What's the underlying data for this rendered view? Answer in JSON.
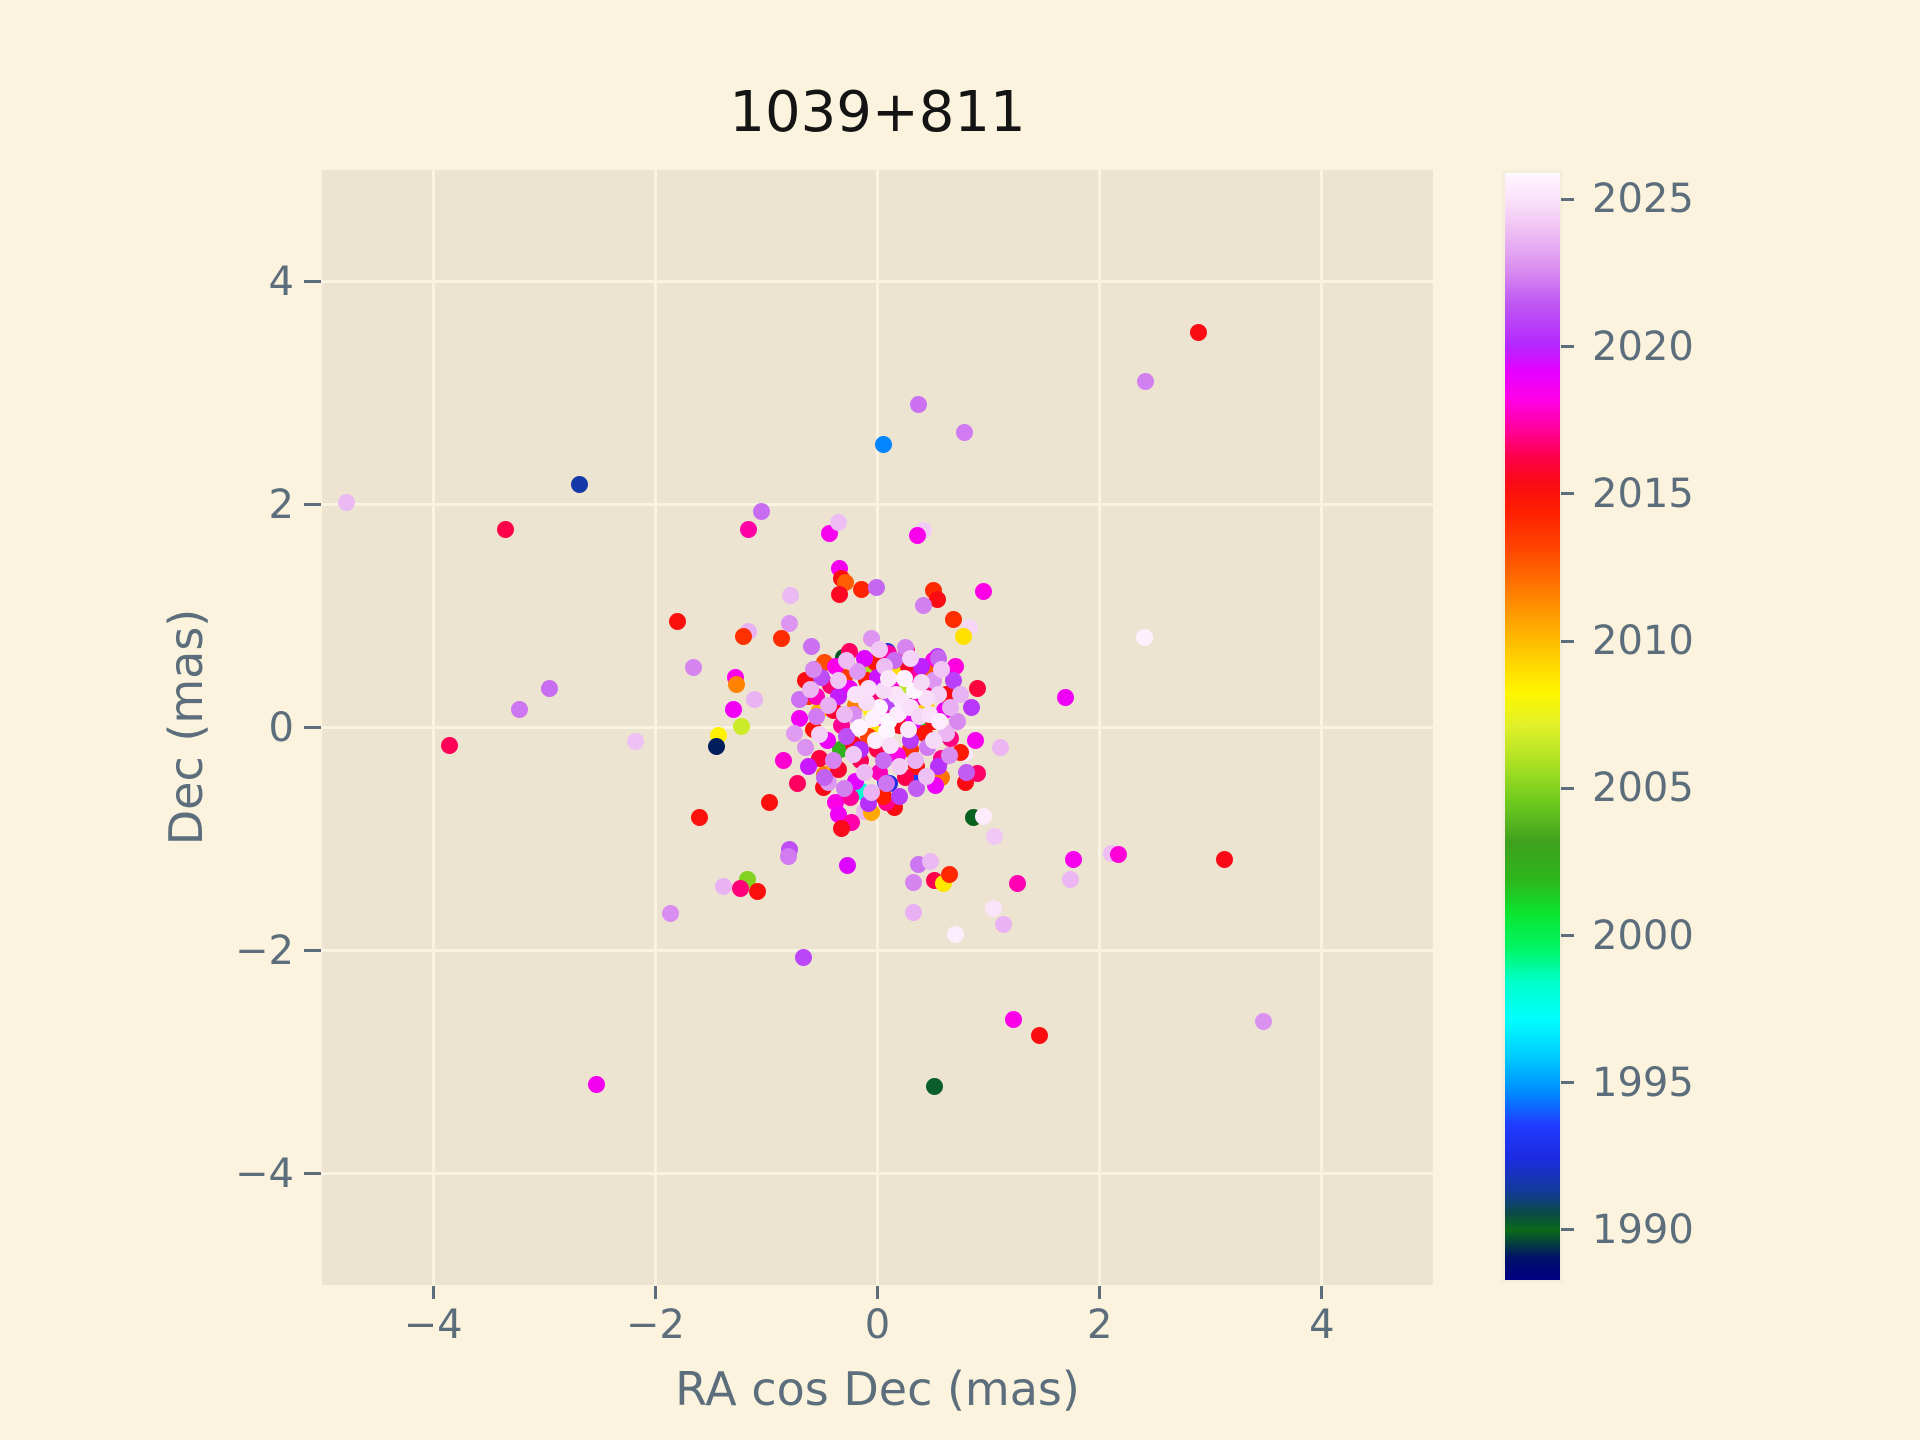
{
  "title": "1039+811",
  "colors": {
    "page_bg": "#fbf3dd",
    "plot_bg": "#ece4d0",
    "grid": "#f9f3e1",
    "tick_text": "#5c6e7c",
    "title_text": "#141414"
  },
  "chart_data": {
    "type": "scatter",
    "title": "1039+811",
    "xlabel": "RA cos Dec (mas)",
    "ylabel": "Dec (mas)",
    "xlim": [
      -5,
      5
    ],
    "ylim": [
      -5,
      5
    ],
    "grid": true,
    "marker_diameter_px": 17,
    "ticks_x": [
      {
        "v": -4,
        "label": "−4"
      },
      {
        "v": -2,
        "label": "−2"
      },
      {
        "v": 0,
        "label": "0"
      },
      {
        "v": 2,
        "label": "2"
      },
      {
        "v": 4,
        "label": "4"
      }
    ],
    "ticks_y": [
      {
        "v": -4,
        "label": "−4"
      },
      {
        "v": -2,
        "label": "−2"
      },
      {
        "v": 0,
        "label": "0"
      },
      {
        "v": 2,
        "label": "2"
      },
      {
        "v": 4,
        "label": "4"
      }
    ],
    "colorbar": {
      "colormap": "gist_ncar",
      "min": 1988.3,
      "max": 2025.9,
      "ticks": [
        {
          "v": 1990,
          "label": "1990"
        },
        {
          "v": 1995,
          "label": "1995"
        },
        {
          "v": 2000,
          "label": "2000"
        },
        {
          "v": 2005,
          "label": "2005"
        },
        {
          "v": 2010,
          "label": "2010"
        },
        {
          "v": 2015,
          "label": "2015"
        },
        {
          "v": 2020,
          "label": "2020"
        },
        {
          "v": 2025,
          "label": "2025"
        }
      ],
      "stops": [
        [
          0.0,
          "#000080"
        ],
        [
          0.02,
          "#00106a"
        ],
        [
          0.045,
          "#0a6a18"
        ],
        [
          0.06,
          "#0a4a46"
        ],
        [
          0.08,
          "#123a9a"
        ],
        [
          0.11,
          "#1c2ce0"
        ],
        [
          0.14,
          "#1f3cff"
        ],
        [
          0.17,
          "#008cff"
        ],
        [
          0.2,
          "#00c8ff"
        ],
        [
          0.235,
          "#00ffff"
        ],
        [
          0.27,
          "#00ffc8"
        ],
        [
          0.3,
          "#00f564"
        ],
        [
          0.33,
          "#0ae630"
        ],
        [
          0.36,
          "#2cb81c"
        ],
        [
          0.395,
          "#3fa01e"
        ],
        [
          0.43,
          "#6cc81e"
        ],
        [
          0.465,
          "#a8e022"
        ],
        [
          0.5,
          "#e0f02a"
        ],
        [
          0.53,
          "#fff600"
        ],
        [
          0.56,
          "#ffd200"
        ],
        [
          0.59,
          "#ffaa00"
        ],
        [
          0.625,
          "#ff7800"
        ],
        [
          0.66,
          "#ff4600"
        ],
        [
          0.695,
          "#ff1e00"
        ],
        [
          0.72,
          "#fa0a14"
        ],
        [
          0.745,
          "#ff0050"
        ],
        [
          0.77,
          "#ff00a0"
        ],
        [
          0.795,
          "#ff00e6"
        ],
        [
          0.82,
          "#e600ff"
        ],
        [
          0.845,
          "#b428ff"
        ],
        [
          0.885,
          "#c05cf2"
        ],
        [
          0.91,
          "#d88af0"
        ],
        [
          0.94,
          "#eab4f2"
        ],
        [
          0.97,
          "#f8dcf8"
        ],
        [
          1.0,
          "#fff8ff"
        ]
      ]
    },
    "points": [
      [
        2.89,
        3.54,
        2015.3
      ],
      [
        2.41,
        3.1,
        2022.3
      ],
      [
        0.37,
        2.9,
        2022.0
      ],
      [
        0.78,
        2.65,
        2022.2
      ],
      [
        0.05,
        2.54,
        1994.6
      ],
      [
        0.41,
        1.77,
        2024.3
      ],
      [
        0.36,
        1.72,
        2018.4
      ],
      [
        -4.78,
        2.02,
        2023.8
      ],
      [
        -2.68,
        2.18,
        1991.5
      ],
      [
        -3.35,
        1.78,
        2016.2
      ],
      [
        -1.8,
        0.95,
        2015.1
      ],
      [
        -1.66,
        0.54,
        2022.4
      ],
      [
        -2.95,
        0.35,
        2021.9
      ],
      [
        -3.22,
        0.16,
        2022.1
      ],
      [
        -3.85,
        -0.16,
        2016.4
      ],
      [
        -2.18,
        -0.13,
        2024.0
      ],
      [
        -1.43,
        -0.07,
        2008.4
      ],
      [
        -1.45,
        -0.17,
        1989.2
      ],
      [
        -1.6,
        -0.81,
        2015.0
      ],
      [
        -1.39,
        -1.43,
        2023.6
      ],
      [
        -1.86,
        -1.67,
        2022.6
      ],
      [
        -2.53,
        -3.2,
        2018.6
      ],
      [
        -0.67,
        -2.06,
        2020.9
      ],
      [
        0.51,
        -3.22,
        1990.2
      ],
      [
        1.22,
        -2.62,
        2018.3
      ],
      [
        1.46,
        -2.76,
        2015.2
      ],
      [
        3.47,
        -2.64,
        2022.7
      ],
      [
        3.12,
        -1.18,
        2015.4
      ],
      [
        2.11,
        -1.13,
        2023.9
      ],
      [
        2.17,
        -1.14,
        2018.0
      ],
      [
        1.76,
        -1.18,
        2018.5
      ],
      [
        1.74,
        -1.36,
        2023.7
      ],
      [
        1.26,
        -1.4,
        2017.5
      ],
      [
        0.37,
        -1.23,
        2022.1
      ],
      [
        0.48,
        -1.2,
        2023.8
      ],
      [
        0.32,
        -1.39,
        2022.4
      ],
      [
        0.51,
        -1.37,
        2016.3
      ],
      [
        0.59,
        -1.4,
        2008.7
      ],
      [
        0.65,
        -1.32,
        2014.1
      ],
      [
        0.32,
        -1.66,
        2023.5
      ],
      [
        1.04,
        -1.62,
        2025.1
      ],
      [
        1.13,
        -1.77,
        2023.6
      ],
      [
        0.7,
        -1.86,
        2025.5
      ],
      [
        0.86,
        -0.81,
        1989.9
      ],
      [
        0.95,
        -0.8,
        2025.4
      ],
      [
        1.05,
        -0.98,
        2024.2
      ],
      [
        1.69,
        0.27,
        2018.8
      ],
      [
        2.4,
        0.81,
        2025.6
      ],
      [
        1.11,
        -0.18,
        2023.7
      ],
      [
        0.78,
        -0.23,
        2025.2
      ],
      [
        0.79,
        -0.49,
        2015.3
      ],
      [
        0.9,
        -0.41,
        2016.6
      ],
      [
        0.95,
        1.22,
        2018.2
      ],
      [
        0.5,
        1.23,
        2014.0
      ],
      [
        0.54,
        1.15,
        2015.3
      ],
      [
        0.41,
        1.09,
        2022.3
      ],
      [
        0.68,
        0.97,
        2013.9
      ],
      [
        0.83,
        0.9,
        2024.6
      ],
      [
        0.77,
        0.82,
        2008.9
      ],
      [
        0.26,
        0.69,
        2017.1
      ],
      [
        0.54,
        0.64,
        2020.9
      ],
      [
        0.5,
        0.6,
        2018.4
      ],
      [
        -1.04,
        1.94,
        2021.9
      ],
      [
        -1.16,
        1.78,
        2017.3
      ],
      [
        -0.43,
        1.74,
        2018.5
      ],
      [
        -0.35,
        1.84,
        2023.9
      ],
      [
        -0.34,
        1.43,
        2018.6
      ],
      [
        -0.32,
        1.34,
        2015.2
      ],
      [
        -0.29,
        1.3,
        2012.5
      ],
      [
        -0.14,
        1.24,
        2014.2
      ],
      [
        -0.01,
        1.26,
        2021.8
      ],
      [
        -0.34,
        1.19,
        2015.6
      ],
      [
        -0.78,
        1.18,
        2023.8
      ],
      [
        -1.16,
        0.86,
        2023.6
      ],
      [
        -1.21,
        0.82,
        2013.8
      ],
      [
        -0.86,
        0.8,
        2014.0
      ],
      [
        -0.79,
        0.93,
        2022.8
      ],
      [
        -1.28,
        0.45,
        2018.4
      ],
      [
        -1.27,
        0.39,
        2011.5
      ],
      [
        -1.11,
        0.25,
        2023.6
      ],
      [
        -1.3,
        0.16,
        2018.7
      ],
      [
        -1.22,
        0.01,
        2006.6
      ],
      [
        -0.97,
        -0.67,
        2015.1
      ],
      [
        -0.72,
        -0.5,
        2016.5
      ],
      [
        -0.49,
        -0.54,
        2015.4
      ],
      [
        -0.44,
        -0.49,
        2022.9
      ],
      [
        -0.48,
        -0.42,
        2011.6
      ],
      [
        -0.38,
        -0.67,
        2018.2
      ],
      [
        -0.35,
        -0.78,
        2018.8
      ],
      [
        -0.14,
        -0.57,
        1998.3
      ],
      [
        -0.24,
        -0.63,
        2017.2
      ],
      [
        -0.23,
        -0.85,
        2017.4
      ],
      [
        -0.32,
        -0.91,
        2015.5
      ],
      [
        0.07,
        -0.49,
        1992.8
      ],
      [
        -0.12,
        -0.75,
        2023.7
      ],
      [
        -0.05,
        -0.76,
        2010.5
      ],
      [
        0.15,
        -0.72,
        2015.3
      ],
      [
        0.08,
        -0.67,
        2017.0
      ],
      [
        -0.79,
        -1.09,
        2021.2
      ],
      [
        -0.8,
        -1.16,
        2022.2
      ],
      [
        -0.27,
        -1.24,
        2019.3
      ],
      [
        -1.17,
        -1.36,
        2005.0
      ],
      [
        -1.23,
        -1.44,
        2016.8
      ],
      [
        -1.08,
        -1.47,
        2015.1
      ],
      [
        -0.31,
        0.63,
        1989.8
      ],
      [
        0.09,
        0.68,
        1992.3
      ],
      [
        -0.56,
        0.52,
        1989.1
      ],
      [
        -0.59,
        0.73,
        2022.0
      ],
      [
        0.28,
        0.28,
        1989.4
      ],
      [
        0.39,
        -0.43,
        1993.4
      ],
      [
        0.11,
        -0.5,
        1992.6
      ],
      [
        -0.02,
        0.38,
        1995.6
      ],
      [
        0.36,
        0.41,
        1997.0
      ],
      [
        0.41,
        -0.02,
        2001.0
      ],
      [
        -0.33,
        -0.2,
        2002.3
      ],
      [
        -0.12,
        0.28,
        2004.6
      ],
      [
        -0.1,
        0.52,
        2005.8
      ],
      [
        0.25,
        0.32,
        2006.2
      ],
      [
        0.02,
        0.02,
        2008.8
      ],
      [
        -0.05,
        0.15,
        2008.4
      ],
      [
        0.15,
        0.5,
        2009.0
      ],
      [
        0.43,
        0.2,
        2009.6
      ],
      [
        -0.52,
        0.15,
        2010.1
      ],
      [
        -0.39,
        -0.33,
        2010.4
      ],
      [
        -0.2,
        0.2,
        2011.6
      ],
      [
        0.58,
        -0.45,
        2011.9
      ],
      [
        0.08,
        0.3,
        2012.1
      ],
      [
        0.45,
        0.48,
        2012.6
      ],
      [
        -0.48,
        0.58,
        2012.9
      ],
      [
        -0.08,
        -0.08,
        2013.2
      ],
      [
        -0.3,
        0.45,
        2013.5
      ],
      [
        0.3,
        -0.2,
        2013.7
      ],
      [
        -0.62,
        0.28,
        2013.9
      ],
      [
        0.15,
        0.15,
        2015.2
      ],
      [
        -0.22,
        -0.15,
        2015.6
      ],
      [
        0.42,
        -0.05,
        2014.8
      ],
      [
        -0.4,
        0.15,
        2015.9
      ],
      [
        0.05,
        -0.62,
        2014.5
      ],
      [
        0.62,
        0.3,
        2015.4
      ],
      [
        -0.58,
        -0.02,
        2014.9
      ],
      [
        0.28,
        0.55,
        2015.7
      ],
      [
        -0.1,
        0.42,
        2014.4
      ],
      [
        0.5,
        0.05,
        2015.1
      ],
      [
        -0.35,
        -0.38,
        2015.8
      ],
      [
        0.75,
        -0.22,
        2014.6
      ],
      [
        -0.65,
        0.42,
        2015.3
      ],
      [
        0.2,
        0.02,
        2015.5
      ],
      [
        -0.02,
        0.58,
        2014.7
      ],
      [
        0.35,
        -0.35,
        2015.0
      ],
      [
        -0.06,
        0.25,
        2016.8
      ],
      [
        0.25,
        -0.45,
        2016.3
      ],
      [
        -0.32,
        0.02,
        2017.1
      ],
      [
        0.48,
        0.32,
        2016.6
      ],
      [
        -0.52,
        -0.28,
        2016.1
      ],
      [
        0.1,
        0.66,
        2017.3
      ],
      [
        0.66,
        -0.1,
        2016.9
      ],
      [
        -0.15,
        -0.3,
        2016.4
      ],
      [
        0.35,
        0.45,
        2017.2
      ],
      [
        -0.42,
        0.38,
        2016.7
      ],
      [
        0.0,
        -0.2,
        2016.2
      ],
      [
        0.58,
        -0.28,
        2017.0
      ],
      [
        -0.25,
        0.68,
        2016.5
      ],
      [
        0.9,
        0.35,
        2016.0
      ],
      [
        0.05,
        0.08,
        2018.4
      ],
      [
        -0.25,
        0.35,
        2018.8
      ],
      [
        0.38,
        0.28,
        2017.9
      ],
      [
        -0.45,
        -0.12,
        2019.0
      ],
      [
        0.18,
        -0.25,
        2018.2
      ],
      [
        0.6,
        0.15,
        2018.6
      ],
      [
        -0.12,
        0.62,
        2019.3
      ],
      [
        -0.55,
        0.28,
        2017.7
      ],
      [
        0.32,
        0.05,
        2019.1
      ],
      [
        0.02,
        -0.4,
        2017.6
      ],
      [
        -0.38,
        0.55,
        2018.3
      ],
      [
        0.52,
        -0.52,
        2018.9
      ],
      [
        0.12,
        0.38,
        2017.8
      ],
      [
        -0.2,
        -0.48,
        2019.2
      ],
      [
        0.7,
        0.55,
        2018.1
      ],
      [
        -0.7,
        0.08,
        2018.7
      ],
      [
        0.88,
        -0.12,
        2018.5
      ],
      [
        -0.85,
        -0.3,
        2017.9
      ],
      [
        -0.15,
        -0.2,
        2020.2
      ],
      [
        0.3,
        -0.12,
        2020.6
      ],
      [
        -0.35,
        0.28,
        2019.8
      ],
      [
        0.12,
        0.22,
        2020.9
      ],
      [
        0.55,
        -0.35,
        2020.4
      ],
      [
        -0.5,
        0.45,
        2021.1
      ],
      [
        0.0,
        0.45,
        2019.6
      ],
      [
        0.68,
        0.42,
        2020.8
      ],
      [
        -0.28,
        -0.08,
        2021.2
      ],
      [
        0.4,
        0.55,
        2019.9
      ],
      [
        -0.08,
        -0.68,
        2020.3
      ],
      [
        0.2,
        -0.62,
        2020.7
      ],
      [
        -0.62,
        -0.35,
        2019.7
      ],
      [
        0.85,
        0.18,
        2020.5
      ],
      [
        -0.4,
        -0.3,
        2022.4
      ],
      [
        0.5,
        0.42,
        2022.8
      ],
      [
        -0.55,
        0.1,
        2022.2
      ],
      [
        0.15,
        0.6,
        2021.9
      ],
      [
        0.65,
        -0.25,
        2022.6
      ],
      [
        -0.18,
        0.5,
        2022.9
      ],
      [
        -0.48,
        -0.45,
        2021.7
      ],
      [
        0.08,
        -0.5,
        2022.1
      ],
      [
        0.72,
        0.05,
        2022.5
      ],
      [
        -0.65,
        -0.18,
        2022.7
      ],
      [
        0.35,
        -0.55,
        2021.6
      ],
      [
        -0.3,
        -0.55,
        2022.3
      ],
      [
        0.55,
        0.62,
        2021.8
      ],
      [
        -0.7,
        0.25,
        2022.0
      ],
      [
        0.25,
        0.72,
        2022.4
      ],
      [
        0.8,
        -0.4,
        2021.6
      ],
      [
        -0.05,
        0.8,
        2022.8
      ],
      [
        -0.75,
        -0.05,
        2023.0
      ],
      [
        0.45,
        -0.18,
        2022.2
      ],
      [
        -0.22,
        0.12,
        2022.6
      ],
      [
        0.05,
        -0.3,
        2021.9
      ],
      [
        -0.58,
        0.52,
        2022.5
      ],
      [
        -0.3,
        0.12,
        2023.8
      ],
      [
        -0.22,
        -0.24,
        2024.2
      ],
      [
        0.34,
        -0.3,
        2023.6
      ],
      [
        0.55,
        0.3,
        2024.4
      ],
      [
        0.06,
        0.55,
        2023.9
      ],
      [
        -0.35,
        0.42,
        2024.1
      ],
      [
        0.2,
        -0.35,
        2024.3
      ],
      [
        0.62,
        -0.05,
        2023.7
      ],
      [
        -0.44,
        0.2,
        2023.5
      ],
      [
        0.44,
        -0.44,
        2024.0
      ],
      [
        -0.12,
        -0.4,
        2023.8
      ],
      [
        0.02,
        0.7,
        2024.2
      ],
      [
        -0.52,
        -0.06,
        2024.4
      ],
      [
        0.75,
        0.3,
        2023.6
      ],
      [
        -0.28,
        0.6,
        2023.9
      ],
      [
        0.58,
        0.52,
        2024.1
      ],
      [
        -0.6,
        0.34,
        2023.7
      ],
      [
        0.3,
        0.62,
        2024.5
      ],
      [
        -0.05,
        -0.58,
        2023.6
      ],
      [
        0.66,
        0.18,
        2023.5
      ],
      [
        0.02,
        0.18,
        2025.7
      ],
      [
        0.1,
        0.05,
        2025.9
      ],
      [
        0.18,
        0.12,
        2025.4
      ],
      [
        -0.04,
        0.08,
        2025.6
      ],
      [
        0.08,
        -0.04,
        2025.8
      ],
      [
        0.22,
        0.24,
        2025.2
      ],
      [
        0.3,
        0.18,
        2024.9
      ],
      [
        -0.1,
        0.22,
        2024.8
      ],
      [
        0.16,
        0.3,
        2025.1
      ],
      [
        0.05,
        0.33,
        2024.7
      ],
      [
        0.28,
        -0.02,
        2025.3
      ],
      [
        0.38,
        0.1,
        2024.6
      ],
      [
        -0.02,
        -0.12,
        2025.5
      ],
      [
        0.12,
        -0.16,
        2024.9
      ],
      [
        0.47,
        0.12,
        2025.0
      ],
      [
        0.44,
        0.26,
        2024.8
      ],
      [
        0.1,
        0.44,
        2025.2
      ],
      [
        -0.16,
        0.0,
        2025.7
      ],
      [
        0.56,
        0.05,
        2025.4
      ],
      [
        0.33,
        0.33,
        2025.8
      ],
      [
        0.5,
        -0.12,
        2024.7
      ],
      [
        -0.08,
        0.35,
        2024.9
      ],
      [
        0.24,
        0.44,
        2025.6
      ],
      [
        -0.2,
        0.3,
        2025.0
      ],
      [
        0.4,
        0.4,
        2024.7
      ]
    ]
  }
}
